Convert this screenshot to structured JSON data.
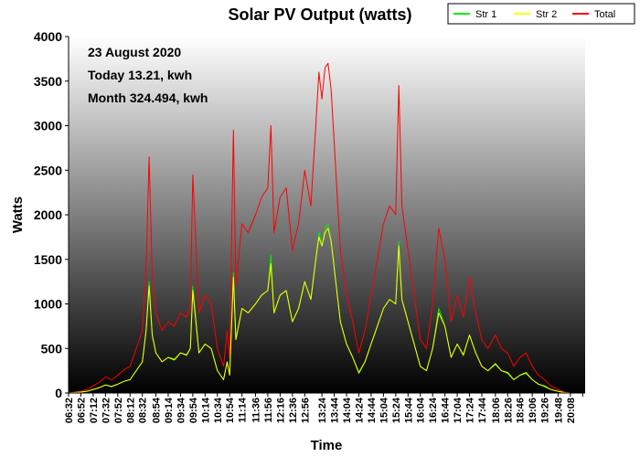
{
  "chart_data": {
    "type": "line",
    "title": "Solar PV Output (watts)",
    "xlabel": "Time",
    "ylabel": "Watts",
    "ylim": [
      0,
      4000
    ],
    "yticks": [
      0,
      500,
      1000,
      1500,
      2000,
      2500,
      3000,
      3500,
      4000
    ],
    "grid": false,
    "legend_position": "top-right",
    "annotations": {
      "date": "23 August 2020",
      "today": "Today 13.21, kwh",
      "month": "Month 324.494, kwh"
    },
    "colors": {
      "Str 1": "#00ee00",
      "Str 2": "#ffff00",
      "Total": "#ff0000",
      "background_top": "#ffffff",
      "background_bottom": "#000000"
    },
    "x_tick_labels": [
      "06:32",
      "06:52",
      "07:12",
      "07:32",
      "07:52",
      "08:12",
      "08:32",
      "08:54",
      "09:14",
      "09:34",
      "09:54",
      "10:14",
      "10:34",
      "10:54",
      "11:14",
      "11:36",
      "11:56",
      "12:16",
      "12:36",
      "12:56",
      "13:24",
      "13:44",
      "14:04",
      "14:24",
      "14:44",
      "15:04",
      "15:24",
      "15:44",
      "16:04",
      "16:24",
      "16:44",
      "17:04",
      "17:24",
      "17:44",
      "18:06",
      "18:26",
      "18:46",
      "19:06",
      "19:26",
      "19:48",
      "20:08"
    ],
    "x_tick_marks": [
      "06:32",
      "06:52",
      "07:12",
      "07:32",
      "07:52",
      "08:12",
      "08:32",
      "08:54",
      "09:14",
      "09:34",
      "09:54",
      "10:14",
      "10:34",
      "10:54",
      "11:14",
      "11:36",
      "11:56",
      "12:16",
      "12:36",
      "12:56",
      "13:24",
      "13:44",
      "14:04",
      "14:24",
      "14:44",
      "15:04",
      "15:24",
      "15:44",
      "16:04",
      "16:24",
      "16:44",
      "17:04",
      "17:24",
      "17:44",
      "18:06",
      "18:26",
      "18:46",
      "19:06",
      "19:26",
      "19:48",
      "20:08",
      "20:28"
    ],
    "x": [
      "06:32",
      "06:42",
      "06:52",
      "07:02",
      "07:12",
      "07:22",
      "07:32",
      "07:42",
      "07:52",
      "08:02",
      "08:12",
      "08:22",
      "08:32",
      "08:38",
      "08:43",
      "08:48",
      "08:54",
      "09:04",
      "09:14",
      "09:24",
      "09:34",
      "09:44",
      "09:50",
      "09:54",
      "10:04",
      "10:14",
      "10:24",
      "10:34",
      "10:44",
      "10:50",
      "10:54",
      "11:00",
      "11:04",
      "11:14",
      "11:24",
      "11:36",
      "11:46",
      "11:56",
      "12:01",
      "12:06",
      "12:16",
      "12:26",
      "12:36",
      "12:46",
      "12:56",
      "13:06",
      "13:14",
      "13:19",
      "13:24",
      "13:29",
      "13:34",
      "13:39",
      "13:44",
      "13:49",
      "13:54",
      "14:04",
      "14:14",
      "14:24",
      "14:34",
      "14:44",
      "14:54",
      "15:04",
      "15:14",
      "15:24",
      "15:29",
      "15:34",
      "15:44",
      "15:54",
      "16:04",
      "16:14",
      "16:24",
      "16:34",
      "16:44",
      "16:54",
      "17:04",
      "17:14",
      "17:24",
      "17:34",
      "17:44",
      "17:54",
      "18:06",
      "18:16",
      "18:26",
      "18:36",
      "18:46",
      "18:56",
      "19:06",
      "19:16",
      "19:26",
      "19:36",
      "19:48",
      "19:58",
      "20:08",
      "20:18"
    ],
    "series": [
      {
        "name": "Total",
        "values": [
          0,
          10,
          20,
          40,
          80,
          120,
          180,
          150,
          200,
          260,
          300,
          500,
          700,
          1400,
          2650,
          1300,
          900,
          700,
          800,
          750,
          900,
          850,
          1000,
          2450,
          900,
          1100,
          1000,
          500,
          300,
          700,
          400,
          2950,
          1200,
          1900,
          1800,
          2000,
          2200,
          2300,
          3000,
          1800,
          2200,
          2300,
          1600,
          1900,
          2500,
          2100,
          3000,
          3600,
          3300,
          3650,
          3700,
          3400,
          2800,
          2200,
          1600,
          1100,
          800,
          450,
          700,
          1100,
          1500,
          1900,
          2100,
          2000,
          3450,
          2100,
          1600,
          1100,
          600,
          500,
          1000,
          1850,
          1500,
          800,
          1100,
          850,
          1300,
          900,
          600,
          500,
          650,
          500,
          450,
          300,
          400,
          450,
          300,
          200,
          150,
          80,
          40,
          10,
          0,
          0
        ]
      },
      {
        "name": "Str 1",
        "values": [
          0,
          5,
          10,
          20,
          40,
          60,
          90,
          70,
          100,
          130,
          150,
          250,
          350,
          700,
          1250,
          650,
          450,
          350,
          400,
          380,
          450,
          420,
          500,
          1200,
          450,
          550,
          500,
          250,
          150,
          350,
          200,
          1350,
          600,
          950,
          900,
          1000,
          1100,
          1150,
          1550,
          900,
          1100,
          1150,
          800,
          950,
          1250,
          1050,
          1500,
          1800,
          1650,
          1850,
          1900,
          1700,
          1400,
          1100,
          800,
          550,
          400,
          220,
          350,
          550,
          750,
          950,
          1050,
          1000,
          1700,
          1050,
          800,
          550,
          300,
          250,
          500,
          950,
          750,
          400,
          550,
          420,
          650,
          450,
          300,
          250,
          320,
          250,
          220,
          150,
          200,
          220,
          150,
          100,
          70,
          40,
          20,
          5,
          0,
          0
        ]
      },
      {
        "name": "Str 2",
        "values": [
          0,
          5,
          10,
          20,
          40,
          60,
          90,
          75,
          100,
          130,
          150,
          250,
          350,
          700,
          1200,
          650,
          450,
          350,
          400,
          370,
          450,
          430,
          500,
          1150,
          450,
          550,
          500,
          250,
          150,
          350,
          200,
          1300,
          600,
          950,
          900,
          1000,
          1100,
          1150,
          1450,
          900,
          1100,
          1150,
          800,
          950,
          1250,
          1050,
          1500,
          1750,
          1650,
          1800,
          1850,
          1700,
          1400,
          1100,
          800,
          550,
          400,
          230,
          350,
          550,
          750,
          950,
          1050,
          1000,
          1650,
          1050,
          800,
          550,
          300,
          250,
          500,
          900,
          750,
          400,
          550,
          430,
          650,
          450,
          300,
          250,
          330,
          250,
          230,
          150,
          200,
          230,
          150,
          100,
          80,
          40,
          20,
          5,
          0,
          0
        ]
      }
    ]
  }
}
